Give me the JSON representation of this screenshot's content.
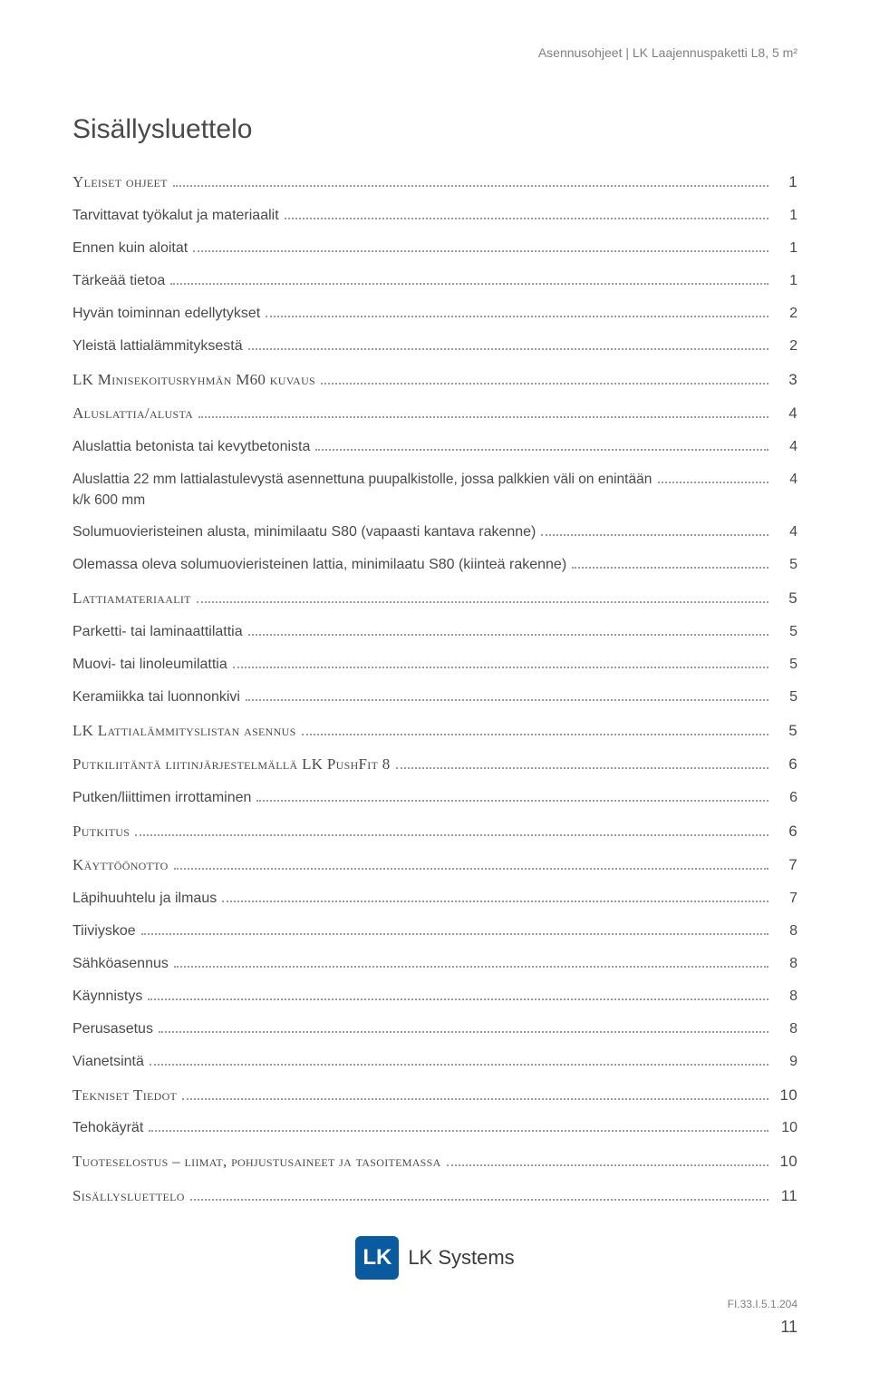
{
  "header": {
    "text": "Asennusohjeet | LK Laajennuspaketti L8, 5 m²"
  },
  "title": "Sisällysluettelo",
  "toc": [
    {
      "label": "Yleiset ohjeet",
      "page": "1",
      "level": "section"
    },
    {
      "label": "Tarvittavat työkalut ja materiaalit",
      "page": "1",
      "level": "sub"
    },
    {
      "label": "Ennen kuin aloitat",
      "page": "1",
      "level": "sub"
    },
    {
      "label": "Tärkeää tietoa",
      "page": "1",
      "level": "sub"
    },
    {
      "label": "Hyvän toiminnan edellytykset",
      "page": "2",
      "level": "sub"
    },
    {
      "label": "Yleistä lattialämmityksestä",
      "page": "2",
      "level": "sub"
    },
    {
      "label": "LK Minisekoitusryhmän M60 kuvaus",
      "page": "3",
      "level": "section"
    },
    {
      "label": "Aluslattia/alusta",
      "page": "4",
      "level": "section"
    },
    {
      "label": "Aluslattia betonista tai kevytbetonista",
      "page": "4",
      "level": "sub"
    },
    {
      "label": "Aluslattia 22 mm lattialastulevystä asennettuna puupalkistolle, jossa palkkien väli on enintään k/k 600 mm",
      "page": "4",
      "level": "sub2",
      "multiline": true
    },
    {
      "label": "Solumuovieristeinen alusta, minimilaatu S80 (vapaasti kantava rakenne)",
      "page": "4",
      "level": "sub"
    },
    {
      "label": "Olemassa oleva solumuovieristeinen lattia, minimilaatu S80 (kiinteä rakenne)",
      "page": "5",
      "level": "sub"
    },
    {
      "label": "Lattiamateriaalit",
      "page": "5",
      "level": "section"
    },
    {
      "label": "Parketti- tai laminaattilattia",
      "page": "5",
      "level": "sub"
    },
    {
      "label": "Muovi- tai linoleumilattia",
      "page": "5",
      "level": "sub"
    },
    {
      "label": "Keramiikka tai luonnonkivi",
      "page": "5",
      "level": "sub"
    },
    {
      "label": "LK Lattialämmityslistan asennus",
      "page": "5",
      "level": "section"
    },
    {
      "label": "Putkiliitäntä liitinjärjestelmällä LK PushFit 8",
      "page": "6",
      "level": "section"
    },
    {
      "label": "Putken/liittimen irrottaminen",
      "page": "6",
      "level": "sub"
    },
    {
      "label": "Putkitus",
      "page": "6",
      "level": "section"
    },
    {
      "label": "Käyttöönotto",
      "page": "7",
      "level": "section"
    },
    {
      "label": "Läpihuuhtelu ja ilmaus",
      "page": "7",
      "level": "sub"
    },
    {
      "label": "Tiiviyskoe",
      "page": "8",
      "level": "sub"
    },
    {
      "label": "Sähköasennus",
      "page": "8",
      "level": "sub"
    },
    {
      "label": "Käynnistys",
      "page": "8",
      "level": "sub"
    },
    {
      "label": "Perusasetus",
      "page": "8",
      "level": "sub"
    },
    {
      "label": "Vianetsintä",
      "page": "9",
      "level": "sub"
    },
    {
      "label": "Tekniset Tiedot",
      "page": "10",
      "level": "section"
    },
    {
      "label": "Tehokäyrät",
      "page": "10",
      "level": "sub"
    },
    {
      "label": "Tuoteselostus – liimat, pohjustusaineet ja tasoitemassa",
      "page": "10",
      "level": "section"
    },
    {
      "label": "Sisällysluettelo",
      "page": "11",
      "level": "section"
    }
  ],
  "logo": {
    "mark": "LK",
    "text": "LK Systems"
  },
  "footer": {
    "meta": "FI.33.I.5.1.204",
    "page": "11"
  }
}
